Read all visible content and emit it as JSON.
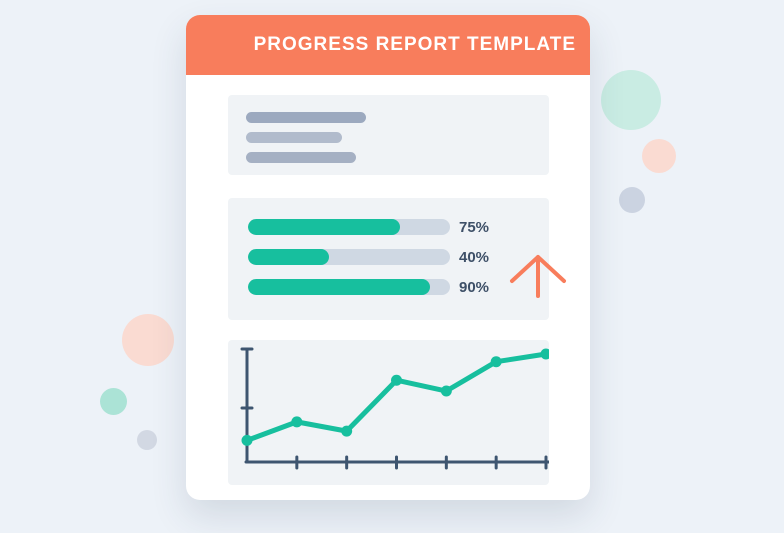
{
  "header": {
    "title": "PROGRESS REPORT TEMPLATE"
  },
  "placeholder_block": {
    "line_count": 3
  },
  "progress": {
    "bars": [
      {
        "value": 75,
        "label": "75%"
      },
      {
        "value": 40,
        "label": "40%"
      },
      {
        "value": 90,
        "label": "90%"
      }
    ]
  },
  "arrow": {
    "direction": "up"
  },
  "chart_data": {
    "type": "line",
    "x": [
      1,
      2,
      3,
      4,
      5,
      6,
      7
    ],
    "values": [
      1.4,
      2.6,
      2.0,
      5.3,
      4.6,
      6.5,
      7.0
    ],
    "title": "",
    "xlabel": "",
    "ylabel": "",
    "ylim": [
      0,
      7
    ],
    "grid": false,
    "legend": false,
    "line_color": "#17BF9E",
    "marker_color": "#17BF9E",
    "axis_color": "#3E5570"
  },
  "colors": {
    "background": "#EDF2F8",
    "card": "#FFFFFF",
    "header_accent": "#F87D5C",
    "panel": "#F0F3F6",
    "progress_track": "#CFD8E3",
    "progress_fill": "#17BF9E",
    "label_text": "#3E5068",
    "header_text": "#FFFFFF"
  }
}
